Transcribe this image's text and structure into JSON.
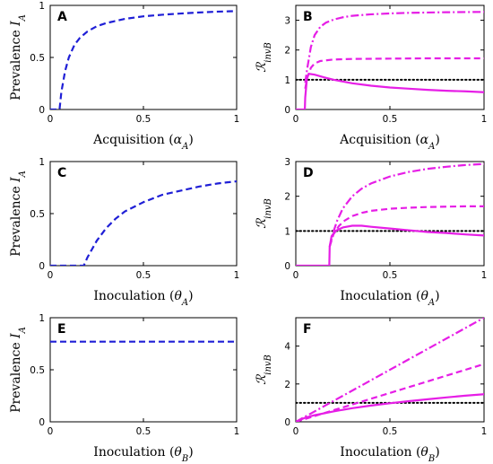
{
  "colors": {
    "blue": "#1f1fd6",
    "magenta": "#e61ee6",
    "black": "#000000"
  },
  "chart_data": [
    {
      "id": "A",
      "type": "line",
      "letter": "A",
      "xlabel": "Acquisition (α_A)",
      "ylabel": "Prevalence I_A",
      "xlim": [
        0,
        1
      ],
      "ylim": [
        0,
        1
      ],
      "xticks": [
        0,
        0.5,
        1
      ],
      "xticklabels": [
        "0",
        "0.5",
        "1"
      ],
      "yticks": [
        0,
        0.5,
        1
      ],
      "yticklabels": [
        "0",
        "0.5",
        "1"
      ],
      "grid": false,
      "series": [
        {
          "style": "dashed",
          "color": "#1f1fd6",
          "x": [
            0,
            0.05,
            0.06,
            0.08,
            0.1,
            0.13,
            0.16,
            0.2,
            0.25,
            0.3,
            0.4,
            0.5,
            0.6,
            0.7,
            0.8,
            0.9,
            1.0
          ],
          "y": [
            0,
            0,
            0.17,
            0.37,
            0.5,
            0.62,
            0.69,
            0.75,
            0.8,
            0.83,
            0.87,
            0.895,
            0.91,
            0.922,
            0.932,
            0.94,
            0.945
          ]
        }
      ]
    },
    {
      "id": "B",
      "type": "line",
      "letter": "B",
      "xlabel": "Acquisition (α_A)",
      "ylabel": "ℛ_invB",
      "xlim": [
        0,
        1
      ],
      "ylim": [
        0,
        3.5
      ],
      "xticks": [
        0,
        0.5,
        1
      ],
      "xticklabels": [
        "0",
        "0.5",
        "1"
      ],
      "yticks": [
        0,
        1,
        2,
        3
      ],
      "yticklabels": [
        "0",
        "1",
        "2",
        "3"
      ],
      "grid": false,
      "series": [
        {
          "style": "dotted",
          "color": "#000000",
          "x": [
            0,
            1
          ],
          "y": [
            1,
            1
          ]
        },
        {
          "style": "solid",
          "color": "#e61ee6",
          "x": [
            0,
            0.048,
            0.05,
            0.06,
            0.07,
            0.1,
            0.15,
            0.2,
            0.3,
            0.4,
            0.5,
            0.6,
            0.7,
            0.8,
            0.9,
            1.0
          ],
          "y": [
            0,
            0,
            0.4,
            1.1,
            1.2,
            1.17,
            1.08,
            1.0,
            0.88,
            0.8,
            0.74,
            0.7,
            0.66,
            0.63,
            0.61,
            0.58
          ]
        },
        {
          "style": "dashed",
          "color": "#e61ee6",
          "x": [
            0.05,
            0.06,
            0.08,
            0.1,
            0.13,
            0.2,
            0.3,
            0.5,
            0.7,
            1.0
          ],
          "y": [
            0.7,
            1.05,
            1.4,
            1.55,
            1.63,
            1.68,
            1.7,
            1.71,
            1.72,
            1.72
          ]
        },
        {
          "style": "dashdot",
          "color": "#e61ee6",
          "x": [
            0.05,
            0.06,
            0.08,
            0.1,
            0.13,
            0.16,
            0.2,
            0.25,
            0.3,
            0.4,
            0.5,
            0.6,
            0.7,
            0.8,
            0.9,
            1.0
          ],
          "y": [
            0.9,
            1.35,
            2.1,
            2.5,
            2.78,
            2.92,
            3.02,
            3.1,
            3.15,
            3.2,
            3.23,
            3.25,
            3.26,
            3.27,
            3.275,
            3.28
          ]
        }
      ]
    },
    {
      "id": "C",
      "type": "line",
      "letter": "C",
      "xlabel": "Inoculation (θ_A)",
      "ylabel": "Prevalence I_A",
      "xlim": [
        0,
        1
      ],
      "ylim": [
        0,
        1
      ],
      "xticks": [
        0,
        0.5,
        1
      ],
      "xticklabels": [
        "0",
        "0.5",
        "1"
      ],
      "yticks": [
        0,
        0.5,
        1
      ],
      "yticklabels": [
        "0",
        "0.5",
        "1"
      ],
      "grid": false,
      "series": [
        {
          "style": "dashed",
          "color": "#1f1fd6",
          "x": [
            0,
            0.18,
            0.2,
            0.25,
            0.3,
            0.35,
            0.4,
            0.5,
            0.6,
            0.7,
            0.8,
            0.9,
            1.0
          ],
          "y": [
            0,
            0,
            0.08,
            0.24,
            0.36,
            0.45,
            0.52,
            0.61,
            0.68,
            0.72,
            0.76,
            0.79,
            0.81
          ]
        }
      ]
    },
    {
      "id": "D",
      "type": "line",
      "letter": "D",
      "xlabel": "Inoculation (θ_A)",
      "ylabel": "ℛ_invB",
      "xlim": [
        0,
        1
      ],
      "ylim": [
        0,
        3
      ],
      "xticks": [
        0,
        0.5,
        1
      ],
      "xticklabels": [
        "0",
        "0.5",
        "1"
      ],
      "yticks": [
        0,
        1,
        2,
        3
      ],
      "yticklabels": [
        "0",
        "1",
        "2",
        "3"
      ],
      "grid": false,
      "series": [
        {
          "style": "dotted",
          "color": "#000000",
          "x": [
            0,
            1
          ],
          "y": [
            1,
            1
          ]
        },
        {
          "style": "solid",
          "color": "#e61ee6",
          "x": [
            0,
            0.178,
            0.18,
            0.19,
            0.21,
            0.25,
            0.3,
            0.35,
            0.4,
            0.5,
            0.6,
            0.7,
            0.8,
            0.9,
            1.0
          ],
          "y": [
            0,
            0,
            0.55,
            0.85,
            1.0,
            1.1,
            1.15,
            1.15,
            1.12,
            1.07,
            1.02,
            0.97,
            0.94,
            0.9,
            0.87
          ]
        },
        {
          "style": "dashed",
          "color": "#e61ee6",
          "x": [
            0.18,
            0.2,
            0.23,
            0.26,
            0.3,
            0.35,
            0.4,
            0.5,
            0.6,
            0.7,
            0.8,
            0.9,
            1.0
          ],
          "y": [
            0.55,
            0.9,
            1.15,
            1.3,
            1.43,
            1.52,
            1.58,
            1.64,
            1.67,
            1.69,
            1.7,
            1.71,
            1.71
          ]
        },
        {
          "style": "dashdot",
          "color": "#e61ee6",
          "x": [
            0.18,
            0.2,
            0.22,
            0.25,
            0.3,
            0.35,
            0.4,
            0.5,
            0.6,
            0.7,
            0.8,
            0.9,
            1.0
          ],
          "y": [
            0.55,
            0.98,
            1.3,
            1.65,
            2.0,
            2.22,
            2.37,
            2.57,
            2.7,
            2.79,
            2.85,
            2.9,
            2.93
          ]
        }
      ]
    },
    {
      "id": "E",
      "type": "line",
      "letter": "E",
      "xlabel": "Inoculation (θ_B)",
      "ylabel": "Prevalence I_A",
      "xlim": [
        0,
        1
      ],
      "ylim": [
        0,
        1
      ],
      "xticks": [
        0,
        0.5,
        1
      ],
      "xticklabels": [
        "0",
        "0.5",
        "1"
      ],
      "yticks": [
        0,
        0.5,
        1
      ],
      "yticklabels": [
        "0",
        "0.5",
        "1"
      ],
      "grid": false,
      "series": [
        {
          "style": "dashed",
          "color": "#1f1fd6",
          "x": [
            0,
            1
          ],
          "y": [
            0.77,
            0.77
          ]
        }
      ]
    },
    {
      "id": "F",
      "type": "line",
      "letter": "F",
      "xlabel": "Inoculation (θ_B)",
      "ylabel": "ℛ_invB",
      "xlim": [
        0,
        1
      ],
      "ylim": [
        0,
        5.5
      ],
      "xticks": [
        0,
        0.5,
        1
      ],
      "xticklabels": [
        "0",
        "0.5",
        "1"
      ],
      "yticks": [
        0,
        2,
        4
      ],
      "yticklabels": [
        "0",
        "2",
        "4"
      ],
      "grid": false,
      "series": [
        {
          "style": "dotted",
          "color": "#000000",
          "x": [
            0,
            1
          ],
          "y": [
            1,
            1
          ]
        },
        {
          "style": "solid",
          "color": "#e61ee6",
          "x": [
            0,
            0.05,
            0.1,
            0.2,
            0.3,
            0.4,
            0.5,
            0.6,
            0.7,
            0.8,
            0.9,
            1.0
          ],
          "y": [
            0,
            0.22,
            0.35,
            0.55,
            0.72,
            0.86,
            0.98,
            1.09,
            1.19,
            1.29,
            1.38,
            1.46
          ]
        },
        {
          "style": "dashed",
          "color": "#e61ee6",
          "x": [
            0,
            1
          ],
          "y": [
            0,
            3.05
          ]
        },
        {
          "style": "dashdot",
          "color": "#e61ee6",
          "x": [
            0,
            1
          ],
          "y": [
            0,
            5.5
          ]
        }
      ]
    }
  ]
}
